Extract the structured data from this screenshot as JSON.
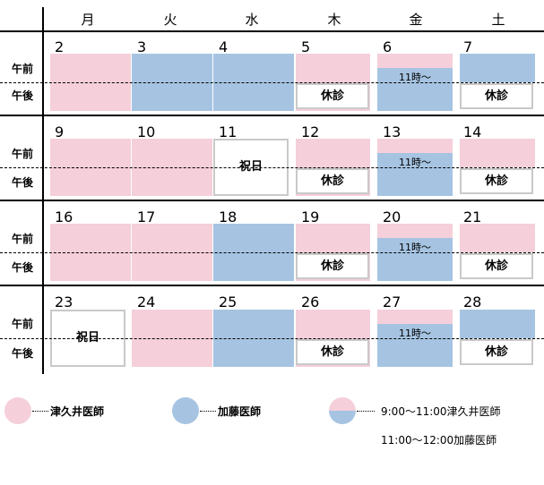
{
  "weekdays": [
    "月",
    "火",
    "水",
    "木",
    "金",
    "土"
  ],
  "slot_labels": {
    "am": "午前",
    "pm": "午後"
  },
  "colors": {
    "tsukui": "#f5cfd9",
    "kato": "#a6c4e2",
    "closed_border": "#c9c9c9"
  },
  "weeks": [
    {
      "dates": [
        "2",
        "3",
        "4",
        "5",
        "6",
        "7"
      ]
    },
    {
      "dates": [
        "9",
        "10",
        "11",
        "12",
        "13",
        "14"
      ]
    },
    {
      "dates": [
        "16",
        "17",
        "18",
        "19",
        "20",
        "21"
      ]
    },
    {
      "dates": [
        "23",
        "24",
        "25",
        "26",
        "27",
        "28"
      ]
    }
  ],
  "labels": {
    "closed": "休診",
    "holiday": "祝日",
    "split_time": "11時～"
  },
  "legend": {
    "tsukui": "津久井医師",
    "kato": "加藤医師",
    "split_line1": "9:00～11:00津久井医師",
    "split_line2": "11:00～12:00加藤医師"
  }
}
